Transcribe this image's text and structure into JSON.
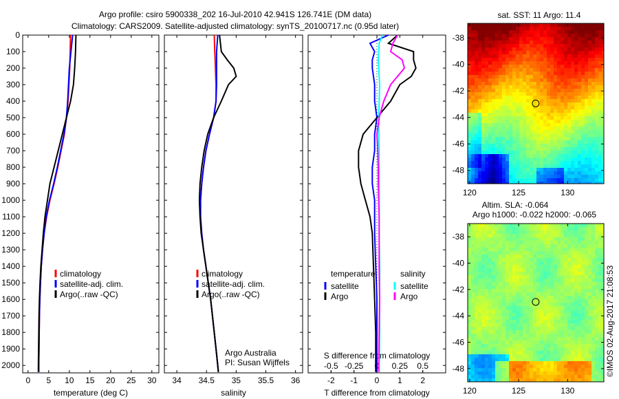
{
  "chart_data": [
    {
      "type": "line",
      "title_lines": [
        "Argo profile: csiro 5900338_202 16-Jul-2010 42.941S 126.741E (DM data)",
        "Climatology: CARS2009. Satellite-adjusted climatology: synTS_20100717.nc (0.95d later)"
      ],
      "xlabel": "temperature (deg C)",
      "ylabel": "depth",
      "xlim": [
        -1.3,
        31.7
      ],
      "ylim": [
        2045,
        0
      ],
      "xticks": [
        0,
        5,
        10,
        15,
        20,
        25,
        30
      ],
      "yticks": [
        0,
        100,
        200,
        300,
        400,
        500,
        600,
        700,
        800,
        900,
        1000,
        1100,
        1200,
        1300,
        1400,
        1500,
        1600,
        1700,
        1800,
        1900,
        2000
      ],
      "depth": [
        0,
        100,
        200,
        300,
        400,
        500,
        600,
        700,
        800,
        900,
        1000,
        1100,
        1200,
        1300,
        1400,
        1500,
        1600,
        1700,
        1800,
        1900,
        2000,
        2040
      ],
      "series": [
        {
          "name": "climatology",
          "color": "#ff0000",
          "values": [
            10.3,
            10.2,
            10.1,
            9.9,
            9.7,
            9.3,
            8.8,
            8.0,
            7.2,
            6.3,
            5.3,
            4.5,
            3.9,
            3.5,
            3.2,
            3.0,
            2.85,
            2.75,
            2.7,
            2.65,
            2.6,
            2.6
          ]
        },
        {
          "name": "satellite-adj. clim.",
          "color": "#0000ff",
          "values": [
            10.8,
            10.4,
            10.0,
            9.8,
            9.6,
            9.3,
            8.7,
            7.9,
            7.1,
            6.2,
            5.2,
            4.4,
            3.9,
            3.5,
            3.2,
            3.0,
            2.85,
            2.75,
            2.7,
            2.65,
            2.6,
            2.6
          ]
        },
        {
          "name": "Argo(..raw -QC)",
          "color": "#000000",
          "values": [
            11.6,
            11.5,
            11.3,
            11.0,
            10.3,
            9.3,
            8.3,
            7.3,
            6.3,
            5.3,
            4.7,
            4.1,
            3.7,
            3.4,
            3.1,
            2.9,
            2.75,
            2.65,
            2.6,
            2.55,
            2.5,
            2.5
          ]
        }
      ],
      "legend": "lower-center"
    },
    {
      "type": "line",
      "xlabel": "salinity",
      "xlim": [
        33.79,
        36.12
      ],
      "ylim": [
        2045,
        0
      ],
      "xticks": [
        34,
        34.5,
        35,
        35.5,
        36
      ],
      "xtick_labels": [
        "34",
        "34.5",
        "35",
        "35.5",
        "36"
      ],
      "depth": [
        0,
        100,
        150,
        200,
        250,
        300,
        400,
        500,
        600,
        700,
        800,
        900,
        1000,
        1100,
        1200,
        1300,
        1400,
        1500,
        1600,
        1700,
        1800,
        1900,
        2000,
        2040
      ],
      "series": [
        {
          "name": "climatology",
          "color": "#ff0000",
          "values": [
            34.63,
            34.64,
            34.645,
            34.65,
            34.655,
            34.66,
            34.66,
            34.62,
            34.55,
            34.49,
            34.45,
            34.42,
            34.4,
            34.4,
            34.42,
            34.45,
            34.49,
            34.53,
            34.57,
            34.6,
            34.63,
            34.66,
            34.69,
            34.7
          ]
        },
        {
          "name": "satellite-adj. clim.",
          "color": "#0000ff",
          "values": [
            34.69,
            34.67,
            34.67,
            34.67,
            34.67,
            34.67,
            34.66,
            34.62,
            34.55,
            34.49,
            34.45,
            34.42,
            34.4,
            34.4,
            34.42,
            34.45,
            34.49,
            34.53,
            34.57,
            34.6,
            34.63,
            34.66,
            34.69,
            34.7
          ]
        },
        {
          "name": "Argo(..raw -QC)",
          "color": "#000000",
          "values": [
            34.72,
            34.75,
            34.85,
            34.96,
            35.0,
            34.87,
            34.75,
            34.62,
            34.52,
            34.46,
            34.42,
            34.39,
            34.38,
            34.39,
            34.41,
            34.45,
            34.49,
            34.53,
            34.57,
            34.6,
            34.63,
            34.66,
            34.69,
            34.7
          ]
        }
      ],
      "annotation": [
        "Argo Australia",
        "PI: Susan Wijffels"
      ],
      "legend": "lower-center"
    },
    {
      "type": "line",
      "xlabel": "T difference from climatology",
      "x2label": "S difference from climatology",
      "xlim": [
        -3,
        3
      ],
      "ylim": [
        2045,
        0
      ],
      "xticks": [
        -2,
        -1,
        0,
        1,
        2
      ],
      "x2ticks": [
        -0.5,
        -0.25,
        0,
        0.25,
        0.5
      ],
      "x2tick_labels": [
        "-0.5",
        "-0.25",
        "0",
        "0.25",
        "0.5"
      ],
      "s_scale": 2,
      "depth": [
        0,
        50,
        100,
        150,
        200,
        250,
        300,
        400,
        500,
        600,
        700,
        800,
        900,
        1000,
        1100,
        1200,
        1400,
        1600,
        1800,
        2000,
        2040
      ],
      "series": [
        {
          "name": "temperature satellite",
          "group": "temperature",
          "label": "satellite",
          "color": "#0000ff",
          "quantity": "T",
          "values": [
            0.5,
            -0.3,
            -0.1,
            -0.2,
            -0.2,
            -0.15,
            -0.1,
            -0.1,
            0.0,
            -0.1,
            -0.1,
            -0.2,
            -0.2,
            -0.1,
            -0.1,
            -0.1,
            -0.05,
            0,
            0,
            0,
            0
          ]
        },
        {
          "name": "temperature Argo",
          "group": "temperature",
          "label": "Argo",
          "color": "#000000",
          "quantity": "T",
          "values": [
            0.9,
            0.5,
            1.6,
            1.6,
            1.7,
            1.5,
            1.0,
            0.6,
            0.0,
            -0.6,
            -0.8,
            -0.8,
            -0.7,
            -0.5,
            -0.3,
            -0.2,
            -0.15,
            -0.1,
            -0.05,
            -0.05,
            -0.05
          ]
        },
        {
          "name": "salinity satellite",
          "group": "salinity",
          "label": "satellite",
          "color": "#00ffff",
          "quantity": "S",
          "values": [
            0.12,
            0.05,
            0.04,
            0.03,
            0.04,
            0.05,
            0.06,
            0.05,
            0.04,
            0.04,
            0.05,
            0.05,
            0.05,
            0.05,
            0.05,
            0.05,
            0.06,
            0.06,
            0.06,
            0.05,
            0.05
          ]
        },
        {
          "name": "salinity Argo",
          "group": "salinity",
          "label": "Argo",
          "color": "#ff00ff",
          "quantity": "S",
          "values": [
            0.45,
            0.35,
            0.3,
            0.55,
            0.6,
            0.45,
            0.3,
            0.15,
            0.05,
            0.0,
            0.02,
            0.03,
            0.03,
            0.04,
            0.05,
            0.05,
            0.05,
            0.06,
            0.05,
            0.04,
            0.04
          ]
        }
      ],
      "legend_headers": [
        "temperature",
        "salinity"
      ],
      "legend": "lower-center"
    },
    {
      "type": "heatmap",
      "title": "sat. SST: 11  Argo: 11.4",
      "xlim": [
        119.8,
        133.7
      ],
      "ylim": [
        -49,
        -36.9
      ],
      "xticks": [
        120,
        125,
        130
      ],
      "yticks": [
        -38,
        -40,
        -42,
        -44,
        -46,
        -48
      ],
      "marker": {
        "lon": 126.741,
        "lat": -42.941
      },
      "colormap": "jet"
    },
    {
      "type": "heatmap",
      "title_lines": [
        "Altim. SLA: -0.064",
        "Argo h1000: -0.022 h2000: -0.065"
      ],
      "xlim": [
        119.8,
        133.7
      ],
      "ylim": [
        -49,
        -37
      ],
      "xticks": [
        120,
        125,
        130
      ],
      "yticks": [
        -38,
        -40,
        -42,
        -44,
        -46,
        -48
      ],
      "marker": {
        "lon": 126.741,
        "lat": -42.941
      },
      "colormap": "jet"
    }
  ],
  "footer": "©IMOS 02-Aug-2017 21:08:53"
}
